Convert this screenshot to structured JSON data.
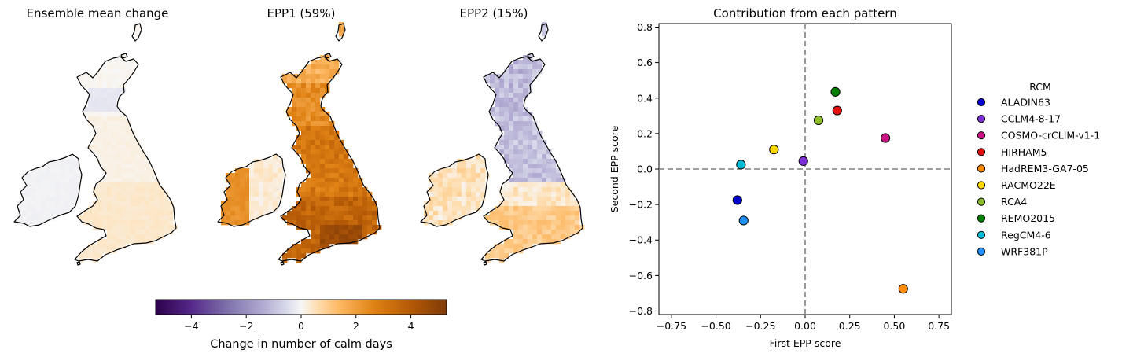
{
  "maps": [
    {
      "title": "Ensemble mean change",
      "scheme": "mean"
    },
    {
      "title": "EPP1 (59%)",
      "scheme": "epp1"
    },
    {
      "title": "EPP2 (15%)",
      "scheme": "epp2"
    }
  ],
  "colorbar": {
    "label": "Change in number of calm days",
    "ticks": [
      -4,
      -2,
      0,
      2,
      4
    ],
    "range": [
      -5.3,
      5.3
    ],
    "colormap": "PuOr_r"
  },
  "chart_data": [
    {
      "type": "heatmap",
      "title": "Ensemble mean change",
      "description_values": "near-zero everywhere; slight positive (about 0.2 to 0.4) in southern England and Wales, slight negative (about -0.3) in the Scottish Highlands"
    },
    {
      "type": "heatmap",
      "title": "EPP1 (59%)",
      "description_values": "positive everywhere; about 1 to 2 in Scotland and western Ireland, 2.5 to 4 across England and Wales, maximum about 4.5 in southern England"
    },
    {
      "type": "heatmap",
      "title": "EPP2 (15%)",
      "description_values": "negative (about -1 to -1.5) in northern England and the Scottish Highlands, positive (about 0.5 to 1.5) in southern England and Ireland"
    },
    {
      "type": "scatter",
      "title": "Contribution from each pattern",
      "xlabel": "First EPP score",
      "ylabel": "Second EPP score",
      "xlim": [
        -0.82,
        0.82
      ],
      "ylim": [
        -0.82,
        0.82
      ],
      "xticks": [
        -0.75,
        -0.5,
        -0.25,
        0.0,
        0.25,
        0.5,
        0.75
      ],
      "yticks": [
        -0.8,
        -0.6,
        -0.4,
        -0.2,
        0.0,
        0.2,
        0.4,
        0.6,
        0.8
      ],
      "reference_lines": {
        "x": 0,
        "y": 0,
        "style": "dashed"
      },
      "legend": {
        "title": "RCM",
        "placement": "right, outside"
      },
      "series": [
        {
          "name": "ALADIN63",
          "color": "#0000cd",
          "x": -0.38,
          "y": -0.175
        },
        {
          "name": "CCLM4-8-17",
          "color": "#7b2fd6",
          "x": -0.01,
          "y": 0.045
        },
        {
          "name": "COSMO-crCLIM-v1-1",
          "color": "#c71585",
          "x": 0.45,
          "y": 0.175
        },
        {
          "name": "HIRHAM5",
          "color": "#e31010",
          "x": 0.18,
          "y": 0.33
        },
        {
          "name": "HadREM3-GA7-05",
          "color": "#ff8c00",
          "x": 0.55,
          "y": -0.675
        },
        {
          "name": "RACMO22E",
          "color": "#ffd700",
          "x": -0.175,
          "y": 0.11
        },
        {
          "name": "RCA4",
          "color": "#8fbc2b",
          "x": 0.075,
          "y": 0.275
        },
        {
          "name": "REMO2015",
          "color": "#008000",
          "x": 0.17,
          "y": 0.435
        },
        {
          "name": "RegCM4-6",
          "color": "#00bcd4",
          "x": -0.36,
          "y": 0.025
        },
        {
          "name": "WRF381P",
          "color": "#1e90ff",
          "x": -0.345,
          "y": -0.29
        }
      ]
    }
  ]
}
